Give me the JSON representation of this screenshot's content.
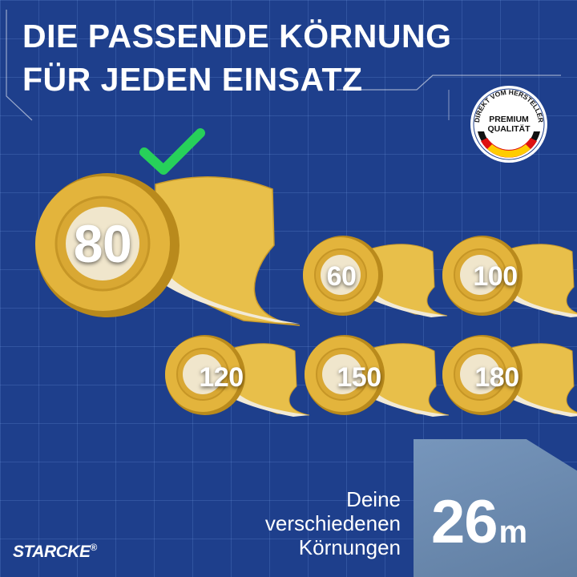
{
  "headline": {
    "line1": "DIE PASSENDE KÖRNUNG",
    "line2": "FÜR JEDEN EINSATZ"
  },
  "badge": {
    "arc_text": "DIREKT VOM HERSTELLER",
    "line1": "PREMIUM",
    "line2": "QUALITÄT",
    "flag_colors": [
      "#111111",
      "#dd1111",
      "#ffcc00"
    ]
  },
  "checkmark_icon": "check-icon",
  "featured_grit": "80",
  "grits": [
    "60",
    "100",
    "120",
    "150",
    "180"
  ],
  "caption": {
    "line1": "Deine",
    "line2": "verschiedenen",
    "line3": "Körnungen"
  },
  "length": {
    "value": "26",
    "unit": "m"
  },
  "brand": {
    "name": "STARCKE",
    "mark": "®"
  },
  "colors": {
    "background": "#1e3f8c",
    "paper": "#e3b43c",
    "paper_dark": "#b98a1c",
    "check": "#27d05a",
    "sheet": "#6b8db6"
  }
}
